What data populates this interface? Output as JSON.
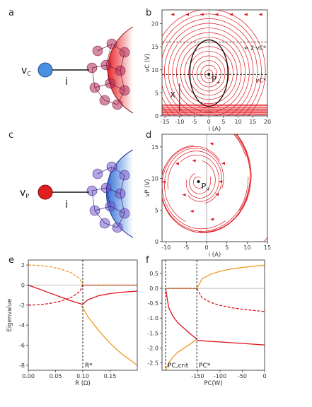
{
  "panels": {
    "a": {
      "label": "a",
      "node_label": "v",
      "node_sub": "C",
      "current_label": "i",
      "node_color": "#4a90e2",
      "hemisphere_color": "#e8262a"
    },
    "b": {
      "label": "b"
    },
    "c": {
      "label": "c",
      "node_label": "v",
      "node_sub": "P",
      "current_label": "i",
      "node_color": "#e02020",
      "hemisphere_color": "#2f6fd6"
    },
    "d": {
      "label": "d"
    },
    "e": {
      "label": "e"
    },
    "f": {
      "label": "f"
    }
  },
  "chart_data": [
    {
      "id": "b",
      "type": "streamplot",
      "xlabel": "i (A)",
      "ylabel": "vC (V)",
      "xlim": [
        -16,
        20
      ],
      "ylim": [
        0,
        23
      ],
      "xticks": [
        -15,
        -10,
        -5,
        0,
        5,
        10,
        15,
        20
      ],
      "yticks": [
        0,
        5,
        10,
        15,
        20
      ],
      "fixed_point": {
        "label": "P",
        "sub": "+",
        "x": 0,
        "y": 9
      },
      "hlines": [
        {
          "y": 9,
          "label": "vC*"
        },
        {
          "y": 16,
          "label": "≈ 2·vC*"
        }
      ],
      "annotation": {
        "label": "X",
        "x": -10,
        "y": 1
      },
      "stream_color": "#e0141b",
      "orbit_color": "#111111"
    },
    {
      "id": "d",
      "type": "streamplot",
      "xlabel": "i (A)",
      "ylabel": "vP (V)",
      "xlim": [
        -11,
        15
      ],
      "ylim": [
        0,
        17
      ],
      "xticks": [
        -10,
        -5,
        0,
        5,
        10,
        15
      ],
      "yticks": [
        0,
        5,
        10,
        15
      ],
      "fixed_point": {
        "label": "P",
        "sub": "+",
        "x": -2,
        "y": 9.5
      },
      "stream_color": "#e0141b"
    },
    {
      "id": "e",
      "type": "line",
      "xlabel": "R (Ω)",
      "ylabel": "Eigenvalue",
      "xlim": [
        0,
        0.2
      ],
      "ylim": [
        -8.5,
        2.5
      ],
      "xticks": [
        "0.00",
        "0.05",
        "0.10",
        "0.15"
      ],
      "yticks": [
        "2",
        "0",
        "-2",
        "-4",
        "-6",
        "-8"
      ],
      "vline": {
        "x": 0.1,
        "label": "R*"
      },
      "series": [
        {
          "style": "dashed",
          "color": "#f4961e",
          "x": [
            0,
            0.02,
            0.04,
            0.06,
            0.08,
            0.095,
            0.1
          ],
          "y": [
            2,
            1.96,
            1.83,
            1.6,
            1.2,
            0.62,
            0
          ]
        },
        {
          "style": "dashed",
          "color": "#e0141b",
          "x": [
            0,
            0.02,
            0.04,
            0.06,
            0.08,
            0.095,
            0.1
          ],
          "y": [
            -2,
            -1.96,
            -1.83,
            -1.6,
            -1.2,
            -0.62,
            0
          ]
        },
        {
          "style": "solid",
          "color": "#e0141b",
          "x": [
            0,
            0.02,
            0.04,
            0.06,
            0.08,
            0.098
          ],
          "y": [
            0,
            -0.4,
            -0.8,
            -1.2,
            -1.6,
            -1.9
          ]
        },
        {
          "style": "solid",
          "color": "#e0141b",
          "x": [
            0.098,
            0.11,
            0.13,
            0.15,
            0.17,
            0.2
          ],
          "y": [
            -2.0,
            -1.45,
            -1.05,
            -0.85,
            -0.72,
            -0.6
          ]
        },
        {
          "style": "solid",
          "color": "#f4961e",
          "x": [
            0.098,
            0.11,
            0.13,
            0.15,
            0.17,
            0.2
          ],
          "y": [
            -2.1,
            -3.2,
            -4.6,
            -5.8,
            -6.8,
            -8.0
          ]
        },
        {
          "style": "solid",
          "color": "#e0141b",
          "x": [
            0.1,
            0.15,
            0.2
          ],
          "y": [
            0,
            0,
            0
          ]
        },
        {
          "style": "dashed",
          "color": "#f4961e",
          "x": [
            0.1,
            0.15,
            0.2
          ],
          "y": [
            0,
            0,
            0
          ]
        }
      ]
    },
    {
      "id": "f",
      "type": "line",
      "xlabel": "PC(W)",
      "ylabel": "",
      "xlim": [
        -230,
        0
      ],
      "ylim": [
        -2.75,
        0.95
      ],
      "xticks": [
        "-150",
        "-100",
        "-50",
        "0"
      ],
      "yticks": [
        "0.5",
        "0.0",
        "-0.5",
        "-1.0",
        "-1.5",
        "-2.0",
        "-2.5"
      ],
      "ytick_values": [
        0.5,
        0,
        -0.5,
        -1,
        -1.5,
        -2,
        -2.5
      ],
      "xtick_values": [
        -150,
        -100,
        -50,
        0
      ],
      "vlines": [
        {
          "x": -222,
          "label": "PC,crit"
        },
        {
          "x": -152,
          "label": "PC*"
        }
      ],
      "series": [
        {
          "style": "solid",
          "color": "#f4961e",
          "x": [
            -152,
            -140,
            -120,
            -100,
            -75,
            -50,
            -25,
            0
          ],
          "y": [
            0,
            0.32,
            0.48,
            0.57,
            0.65,
            0.7,
            0.74,
            0.78
          ]
        },
        {
          "style": "dashed",
          "color": "#e0141b",
          "x": [
            -152,
            -140,
            -120,
            -100,
            -75,
            -50,
            -25,
            0
          ],
          "y": [
            0,
            -0.32,
            -0.48,
            -0.57,
            -0.65,
            -0.7,
            -0.74,
            -0.78
          ]
        },
        {
          "style": "solid",
          "color": "#e0141b",
          "x": [
            -222,
            -152
          ],
          "y": [
            0,
            0
          ]
        },
        {
          "style": "dashed",
          "color": "#f4961e",
          "x": [
            -222,
            -152
          ],
          "y": [
            0,
            0
          ]
        },
        {
          "style": "solid",
          "color": "#e0141b",
          "x": [
            -222,
            -215,
            -205,
            -195,
            -180,
            -165,
            -152
          ],
          "y": [
            0,
            -0.65,
            -0.95,
            -1.15,
            -1.35,
            -1.55,
            -1.7
          ]
        },
        {
          "style": "solid",
          "color": "#f4961e",
          "x": [
            -222,
            -215,
            -205,
            -195,
            -180,
            -165,
            -152
          ],
          "y": [
            -2.75,
            -2.5,
            -2.3,
            -2.15,
            -2.0,
            -1.85,
            -1.7
          ]
        },
        {
          "style": "solid",
          "color": "#e0141b",
          "x": [
            -152,
            -120,
            -90,
            -60,
            -30,
            0
          ],
          "y": [
            -1.75,
            -1.78,
            -1.81,
            -1.84,
            -1.87,
            -1.9
          ]
        }
      ]
    }
  ]
}
